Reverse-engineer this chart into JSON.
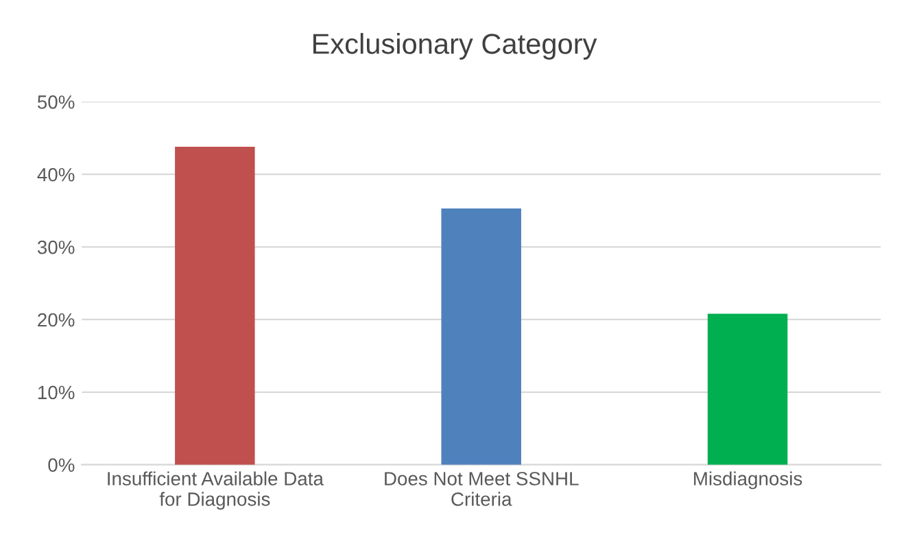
{
  "chart_data": {
    "type": "bar",
    "title": "Exclusionary Category",
    "categories": [
      "Insufficient Available Data\nfor Diagnosis",
      "Does Not Meet SSNHL\nCriteria",
      "Misdiagnosis"
    ],
    "values": [
      43.8,
      35.3,
      20.8
    ],
    "colors": [
      "#c0504d",
      "#4f81bd",
      "#00b050"
    ],
    "ylim": [
      0,
      50
    ],
    "yticks": [
      {
        "value": 0,
        "label": "0%"
      },
      {
        "value": 10,
        "label": "10%"
      },
      {
        "value": 20,
        "label": "20%"
      },
      {
        "value": 30,
        "label": "30%"
      },
      {
        "value": 40,
        "label": "40%"
      },
      {
        "value": 50,
        "label": "50%"
      }
    ],
    "grid": "y"
  }
}
